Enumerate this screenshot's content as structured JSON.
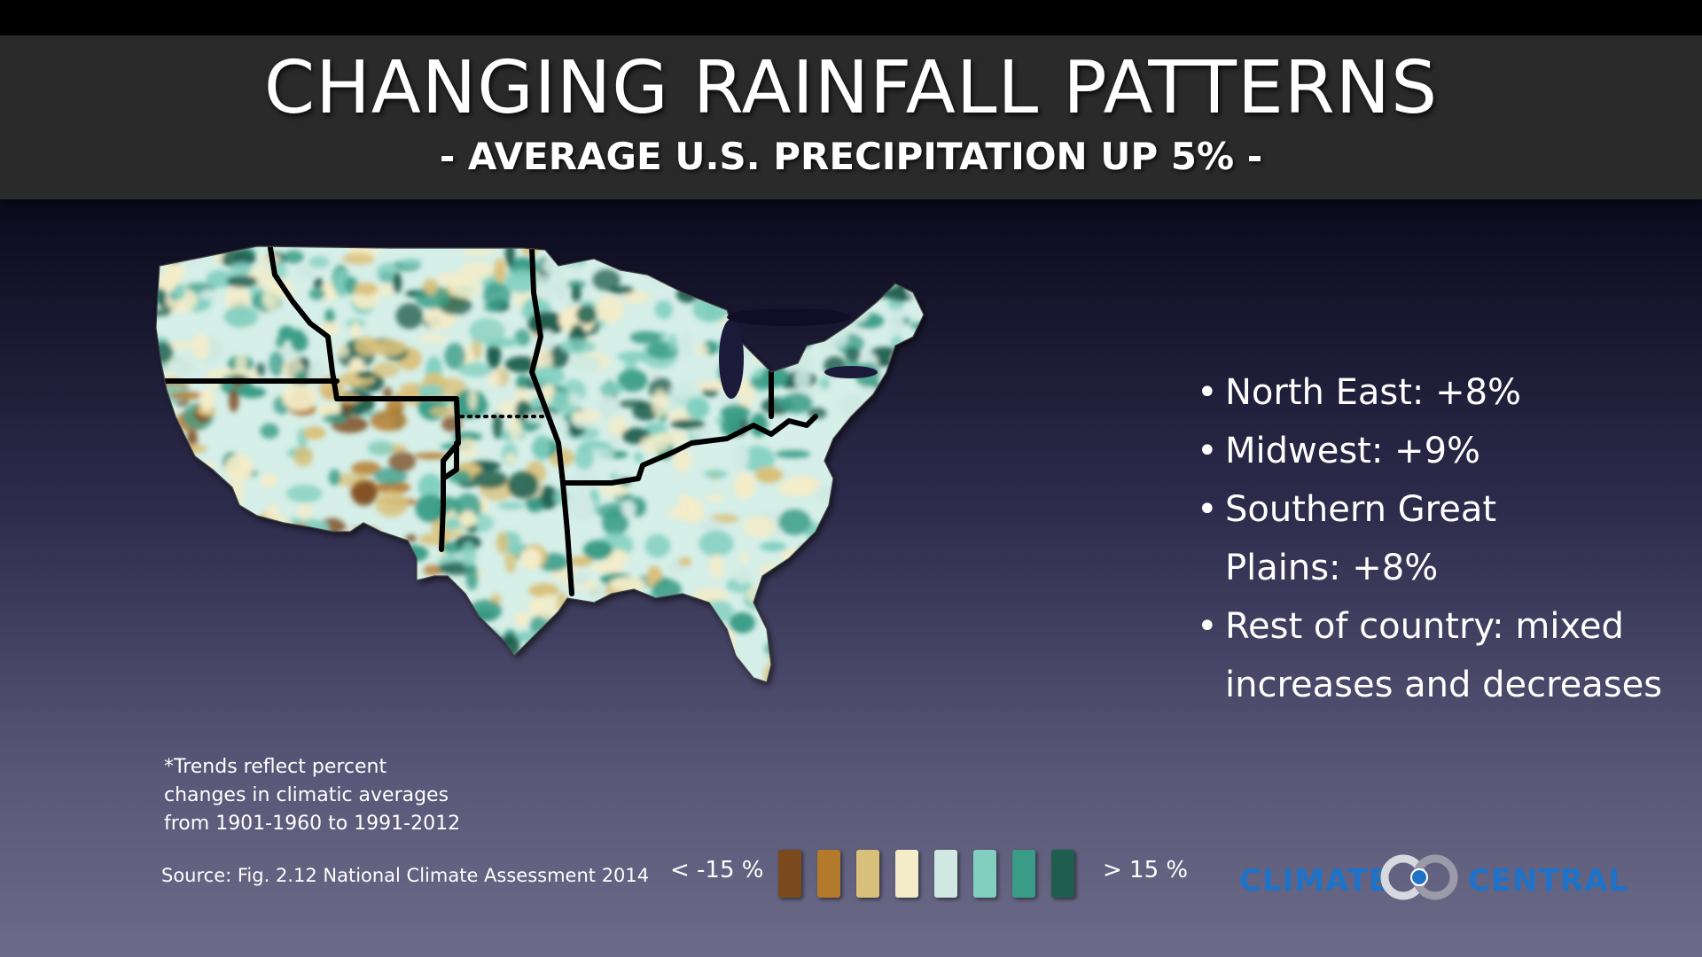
{
  "title": "CHANGING RAINFALL PATTERNS",
  "subtitle": "- AVERAGE U.S. PRECIPITATION UP 5% -",
  "bullets": [
    {
      "line1": "North East: +8%",
      "line2": ""
    },
    {
      "line1": "Midwest: +9%",
      "line2": ""
    },
    {
      "line1": "Southern Great",
      "line2": "Plains: +8%"
    },
    {
      "line1": "Rest of country: mixed",
      "line2": "increases and decreases"
    }
  ],
  "bullet_symbol": "•",
  "footnote": {
    "line1": "*Trends reflect percent",
    "line2": "changes in climatic averages",
    "line3": "from 1901-1960 to 1991-2012"
  },
  "source": "Source: Fig. 2.12 National Climate Assessment 2014",
  "legend": {
    "low_label": "< -15 %",
    "high_label": "> 15 %",
    "colors": [
      "#7a4a1e",
      "#b47a2c",
      "#d9c07a",
      "#f4ecc8",
      "#cfe9e2",
      "#82cfc0",
      "#3a9c87",
      "#1f5e4e"
    ]
  },
  "logo": {
    "word_left": "CLIMATE",
    "word_right": "CENTRAL",
    "color": "#1e73c8"
  },
  "map": {
    "land_base": "#d6efe8",
    "colors": {
      "dark_brown": "#7a4a1e",
      "brown": "#b47a2c",
      "tan": "#d9c07a",
      "cream": "#f4ecc8",
      "pale_teal": "#cfe9e2",
      "teal": "#82cfc0",
      "green": "#3a9c87",
      "dark_green": "#1f5e4e"
    }
  }
}
